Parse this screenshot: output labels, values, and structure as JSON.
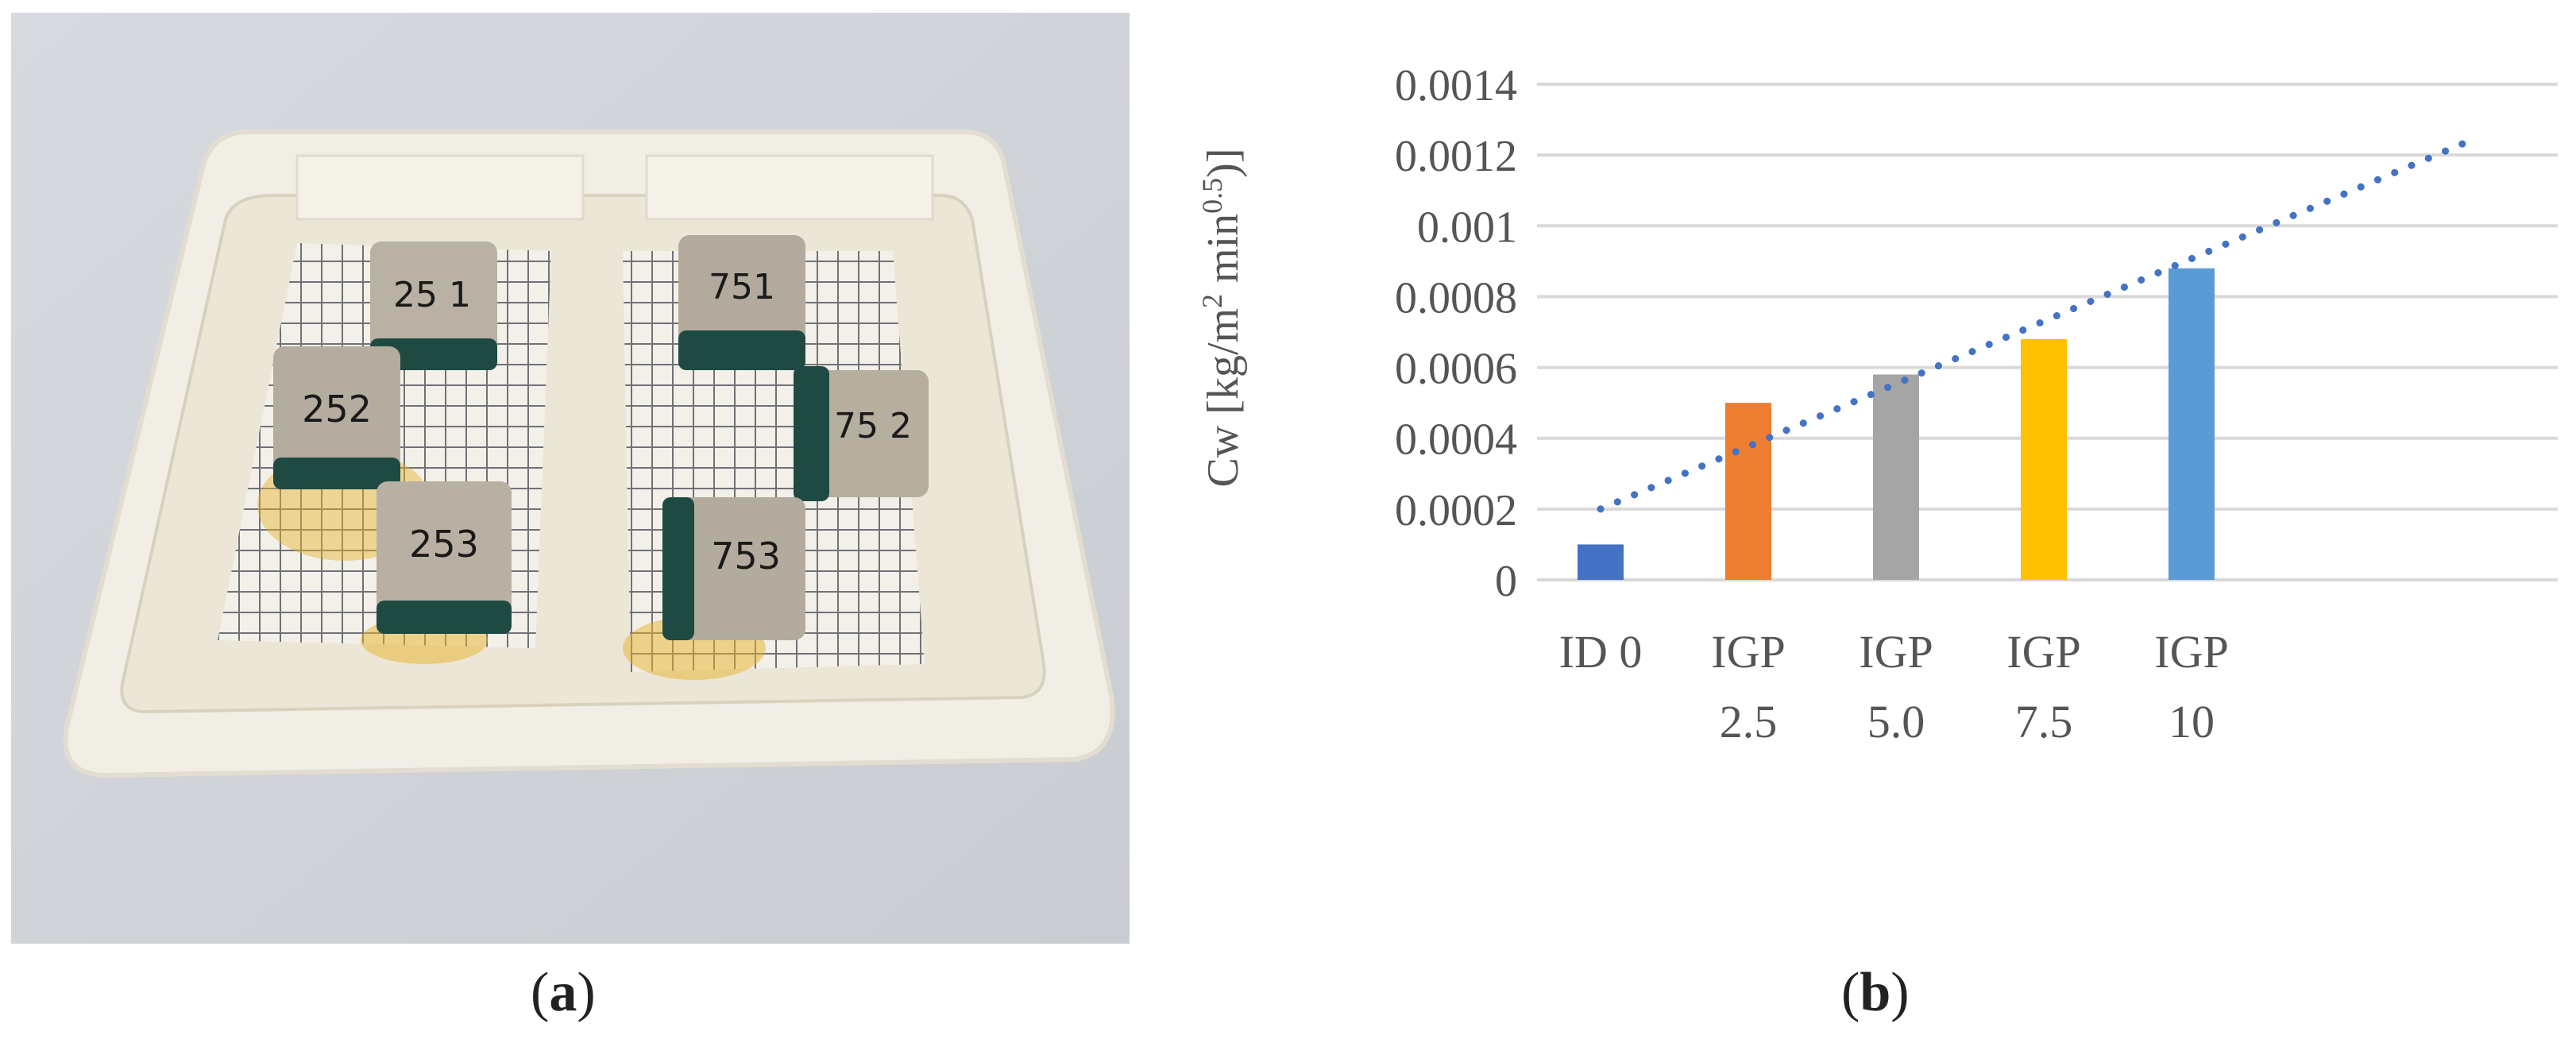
{
  "panels": {
    "a": {
      "open": "(",
      "letter": "a",
      "close": ")"
    },
    "b": {
      "open": "(",
      "letter": "b",
      "close": ")"
    }
  },
  "photo": {
    "description_icon": "photo-of-specimens-in-tray",
    "specimen_labels": [
      "25 1",
      "252",
      "253",
      "751",
      "75 2",
      "753"
    ]
  },
  "colors": {
    "id0": "#4472C4",
    "igp25": "#ED7D31",
    "igp50": "#A5A5A5",
    "igp75": "#FFC000",
    "igp10": "#5B9BD5",
    "trend": "#4472C4",
    "grid": "#D9D9D9"
  },
  "chart_data": {
    "type": "bar",
    "ylabel": "Cw [kg/m² min⁰·⁵)]",
    "ylabel_parts": {
      "main": "Cw [kg/m",
      "sup1": "2",
      "mid": " min",
      "sup2": "0.5",
      "end": ")]"
    },
    "ylim": [
      0,
      0.0014
    ],
    "yticks": [
      "0",
      "0.0002",
      "0.0004",
      "0.0006",
      "0.0008",
      "0.001",
      "0.0012",
      "0.0014"
    ],
    "ytick_values": [
      0,
      0.0002,
      0.0004,
      0.0006,
      0.0008,
      0.001,
      0.0012,
      0.0014
    ],
    "categories": [
      {
        "line1": "ID 0",
        "line2": ""
      },
      {
        "line1": "IGP",
        "line2": "2.5"
      },
      {
        "line1": "IGP",
        "line2": "5.0"
      },
      {
        "line1": "IGP",
        "line2": "7.5"
      },
      {
        "line1": "IGP",
        "line2": "10"
      }
    ],
    "values": [
      0.0001,
      0.0005,
      0.00058,
      0.00068,
      0.00088
    ],
    "grid": true,
    "legend": "none",
    "trendline": {
      "type": "linear",
      "style": "dotted",
      "start_value": 0.0002,
      "end_value": 0.00124
    }
  }
}
